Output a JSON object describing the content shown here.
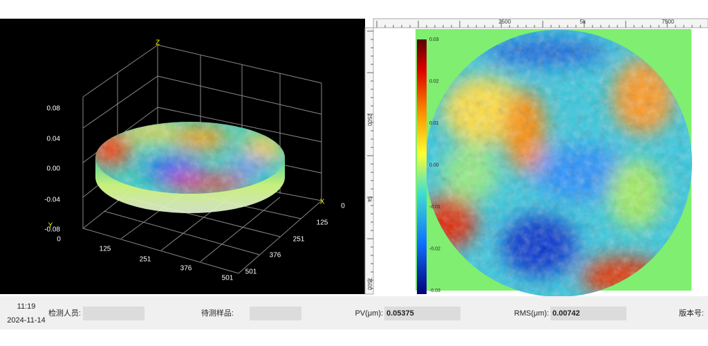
{
  "plot3d": {
    "axis_z": "Z",
    "axis_x": "X",
    "axis_y": "Y",
    "z_ticks": [
      "0.08",
      "0.04",
      "0.00",
      "-0.04",
      "-0.08"
    ],
    "y_ticks": [
      "0",
      "125",
      "251",
      "376",
      "501"
    ],
    "x_ticks": [
      "0",
      "125",
      "251",
      "376",
      "501"
    ]
  },
  "heatmap": {
    "top_ruler": [
      "2500",
      "5k",
      "7500"
    ],
    "left_ruler": [
      "2500",
      "5k",
      "7500"
    ],
    "colorbar": [
      "0.03",
      "0.02",
      "0.01",
      "0.00",
      "-0.01",
      "-0.02",
      "-0.03"
    ]
  },
  "status": {
    "time": "11:19",
    "date": "2024-11-14",
    "inspector_label": "检测人员:",
    "sample_label": "待测样品:",
    "pv_label": "PV(μm):",
    "pv_value": "0.05375",
    "rms_label": "RMS(μm):",
    "rms_value": "0.00742",
    "version_label": "版本号:"
  }
}
